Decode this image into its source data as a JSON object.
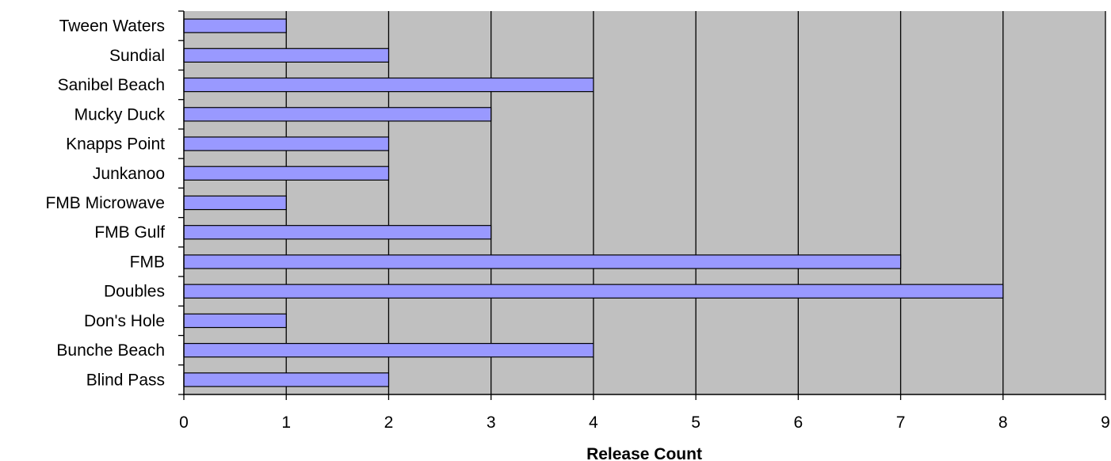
{
  "chart_data": {
    "type": "bar",
    "orientation": "horizontal",
    "title": "",
    "xlabel": "Release Count",
    "ylabel": "",
    "categories": [
      "Blind Pass",
      "Bunche Beach",
      "Don's Hole",
      "Doubles",
      "FMB",
      "FMB Gulf",
      "FMB Microwave",
      "Junkanoo",
      "Knapps Point",
      "Mucky Duck",
      "Sanibel Beach",
      "Sundial",
      "Tween Waters"
    ],
    "values": [
      2,
      4,
      1,
      8,
      7,
      3,
      1,
      2,
      2,
      3,
      4,
      2,
      1
    ],
    "xlim": [
      0,
      9
    ],
    "xticks": [
      "0",
      "1",
      "2",
      "3",
      "4",
      "5",
      "6",
      "7",
      "8",
      "9"
    ],
    "grid": "vertical",
    "legend": "none",
    "colors": {
      "bar_fill": "#9999ff",
      "bar_stroke": "#000000",
      "plot_background": "#c0c0c0",
      "gridline": "#000000"
    }
  }
}
